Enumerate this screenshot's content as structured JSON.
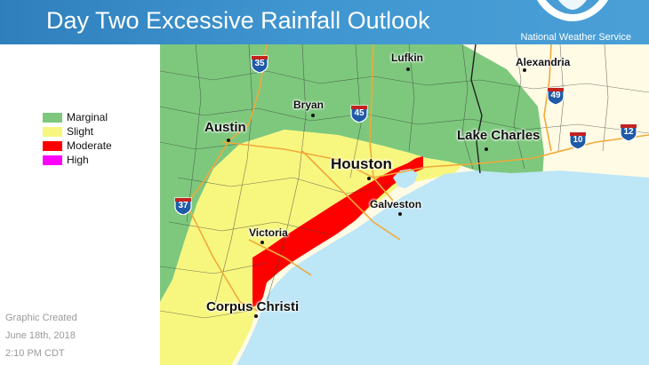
{
  "header": {
    "title": "Day Two Excessive Rainfall Outlook",
    "agency": "National Weather Service"
  },
  "legend": [
    {
      "label": "Marginal",
      "color": "#7dc87d"
    },
    {
      "label": "Slight",
      "color": "#f7f77f"
    },
    {
      "label": "Moderate",
      "color": "#ff0000"
    },
    {
      "label": "High",
      "color": "#ff00ff"
    }
  ],
  "credit": {
    "line1": "Graphic Created",
    "line2": "June 18th, 2018",
    "line3": "2:10 PM CDT"
  },
  "cities": {
    "lufkin": "Lufkin",
    "alexandria": "Alexandria",
    "bryan": "Bryan",
    "austin": "Austin",
    "lake_charles": "Lake Charles",
    "houston": "Houston",
    "galveston": "Galveston",
    "victoria": "Victoria",
    "corpus_christi": "Corpus Christi"
  },
  "interstates": {
    "i35": "35",
    "i45": "45",
    "i49": "49",
    "i10": "10",
    "i12": "12",
    "i37": "37"
  },
  "colors": {
    "gulf": "#bde6f7",
    "land": "#fffbe4",
    "county_lines": "#3f3f3f",
    "roads": "#f1a93a",
    "shield_blue": "#1f5aa8",
    "shield_red": "#c4221f"
  }
}
